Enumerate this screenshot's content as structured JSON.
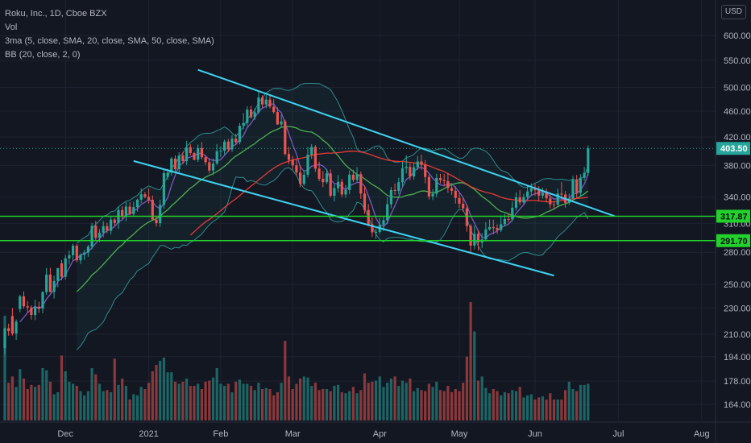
{
  "legend": {
    "symbol": "Roku, Inc., 1D, Cboe BZX",
    "vol": "Vol",
    "ma": "3ma (5, close, SMA, 20, close, SMA, 50, close, SMA)",
    "bb": "BB (20, close, 2, 0)"
  },
  "currency_label": "USD",
  "colors": {
    "background": "#131722",
    "up": "#26a69a",
    "down": "#ef5350",
    "ma5": "#7e57c2",
    "ma20": "#4caf50",
    "ma50": "#e53935",
    "bb": "#2e8b8b",
    "channel": "#3fd2f0",
    "level": "#22d12b",
    "last_price": "#26a69a"
  },
  "chart_data": {
    "type": "candlestick",
    "log_scale": true,
    "ylim": [
      155,
      680
    ],
    "y_ticks": [
      164,
      178,
      194,
      210,
      230,
      250,
      280,
      310,
      340,
      380,
      420,
      460,
      500,
      550,
      600
    ],
    "x_ticks": [
      {
        "label": "Dec",
        "date": "2020-12-01"
      },
      {
        "label": "2021",
        "date": "2021-01-04"
      },
      {
        "label": "Feb",
        "date": "2021-02-01"
      },
      {
        "label": "Mar",
        "date": "2021-03-01"
      },
      {
        "label": "Apr",
        "date": "2021-04-01"
      },
      {
        "label": "May",
        "date": "2021-05-03"
      },
      {
        "label": "Jun",
        "date": "2021-06-01"
      },
      {
        "label": "Jul",
        "date": "2021-07-01"
      },
      {
        "label": "Aug",
        "date": "2021-08-02"
      }
    ],
    "series": [
      {
        "name": "Roku, Inc.",
        "dates": [
          "2020-11-06",
          "2020-11-09",
          "2020-11-10",
          "2020-11-11",
          "2020-11-12",
          "2020-11-13",
          "2020-11-16",
          "2020-11-17",
          "2020-11-18",
          "2020-11-19",
          "2020-11-20",
          "2020-11-23",
          "2020-11-24",
          "2020-11-25",
          "2020-11-27",
          "2020-11-30",
          "2020-12-01",
          "2020-12-02",
          "2020-12-03",
          "2020-12-04",
          "2020-12-07",
          "2020-12-08",
          "2020-12-09",
          "2020-12-10",
          "2020-12-11",
          "2020-12-14",
          "2020-12-15",
          "2020-12-16",
          "2020-12-17",
          "2020-12-18",
          "2020-12-21",
          "2020-12-22",
          "2020-12-23",
          "2020-12-24",
          "2020-12-28",
          "2020-12-29",
          "2020-12-30",
          "2020-12-31",
          "2021-01-04",
          "2021-01-05",
          "2021-01-06",
          "2021-01-07",
          "2021-01-08",
          "2021-01-11",
          "2021-01-12",
          "2021-01-13",
          "2021-01-14",
          "2021-01-15",
          "2021-01-19",
          "2021-01-20",
          "2021-01-21",
          "2021-01-22",
          "2021-01-25",
          "2021-01-26",
          "2021-01-27",
          "2021-01-28",
          "2021-01-29",
          "2021-02-01",
          "2021-02-02",
          "2021-02-03",
          "2021-02-04",
          "2021-02-05",
          "2021-02-08",
          "2021-02-09",
          "2021-02-10",
          "2021-02-11",
          "2021-02-12",
          "2021-02-16",
          "2021-02-17",
          "2021-02-18",
          "2021-02-19",
          "2021-02-22",
          "2021-02-23",
          "2021-02-24",
          "2021-02-25",
          "2021-02-26",
          "2021-03-01",
          "2021-03-02",
          "2021-03-03",
          "2021-03-04",
          "2021-03-05",
          "2021-03-08",
          "2021-03-09",
          "2021-03-10",
          "2021-03-11",
          "2021-03-12",
          "2021-03-15",
          "2021-03-16",
          "2021-03-17",
          "2021-03-18",
          "2021-03-19",
          "2021-03-22",
          "2021-03-23",
          "2021-03-24",
          "2021-03-25",
          "2021-03-26",
          "2021-03-29",
          "2021-03-30",
          "2021-03-31",
          "2021-04-01",
          "2021-04-05",
          "2021-04-06",
          "2021-04-07",
          "2021-04-08",
          "2021-04-09",
          "2021-04-12",
          "2021-04-13",
          "2021-04-14",
          "2021-04-15",
          "2021-04-16",
          "2021-04-19",
          "2021-04-20",
          "2021-04-21",
          "2021-04-22",
          "2021-04-23",
          "2021-04-26",
          "2021-04-27",
          "2021-04-28",
          "2021-04-29",
          "2021-04-30",
          "2021-05-03",
          "2021-05-04",
          "2021-05-05",
          "2021-05-06",
          "2021-05-07",
          "2021-05-10",
          "2021-05-11",
          "2021-05-12",
          "2021-05-13",
          "2021-05-14",
          "2021-05-17",
          "2021-05-18",
          "2021-05-19",
          "2021-05-20",
          "2021-05-21",
          "2021-05-24",
          "2021-05-25",
          "2021-05-26",
          "2021-05-27",
          "2021-05-28",
          "2021-06-01",
          "2021-06-02",
          "2021-06-03",
          "2021-06-04",
          "2021-06-07",
          "2021-06-08",
          "2021-06-09",
          "2021-06-10",
          "2021-06-11",
          "2021-06-14",
          "2021-06-15",
          "2021-06-16",
          "2021-06-17",
          "2021-06-18",
          "2021-06-21"
        ],
        "open": [
          200.0,
          214.4,
          223.7,
          210.4,
          229.4,
          239.8,
          231.6,
          230.6,
          224.6,
          231.3,
          229.7,
          243.4,
          258.9,
          243.6,
          253.1,
          269.3,
          256.9,
          274.1,
          277.2,
          286.5,
          272.2,
          277.6,
          279.8,
          285.6,
          307.3,
          294.6,
          300.0,
          307.0,
          302.0,
          314.1,
          310.5,
          324.9,
          317.4,
          328.8,
          320.4,
          328.2,
          336.9,
          343.4,
          340.2,
          336.8,
          314.0,
          310.2,
          330.8,
          365.1,
          370.6,
          389.4,
          375.1,
          393.4,
          385.9,
          405.3,
          397.0,
          387.7,
          403.9,
          391.1,
          384.4,
          373.3,
          382.6,
          399.6,
          400.2,
          413.3,
          402.1,
          417.5,
          412.5,
          437.0,
          441.2,
          462.5,
          450.2,
          458.1,
          482.6,
          470.9,
          479.1,
          467.3,
          458.5,
          439.0,
          443.8,
          395.7,
          387.5,
          380.1,
          370.7,
          356.1,
          367.9,
          394.7,
          405.5,
          375.8,
          362.6,
          358.3,
          369.6,
          341.6,
          350.8,
          358.7,
          343.2,
          348.6,
          367.9,
          361.1,
          368.6,
          344.2,
          324.9,
          309.0,
          300.3,
          300.8,
          308.5,
          313.5,
          331.6,
          348.6,
          347.5,
          358.3,
          376.2,
          378.1,
          365.6,
          377.6,
          385.4,
          380.7,
          364.9,
          340.8,
          344.0,
          363.6,
          361.0,
          359.7,
          351.0,
          347.6,
          339.0,
          332.2,
          326.8,
          307.1,
          286.7,
          298.9,
          289.9,
          292.9,
          303.5,
          306.0,
          304.9,
          302.7,
          309.0,
          314.8,
          314.3,
          327.5,
          339.7,
          333.7,
          340.0,
          346.9,
          350.8,
          348.3,
          341.8,
          345.1,
          338.6,
          331.4,
          331.2,
          344.3,
          343.1,
          333.2,
          338.4,
          361.6,
          345.1,
          364.0,
          370.0
        ],
        "high": [
          213.0,
          217.9,
          230.1,
          221.1,
          241.1,
          244.0,
          235.9,
          232.3,
          237.0,
          235.4,
          244.4,
          265.1,
          265.1,
          257.8,
          265.2,
          272.5,
          277.4,
          281.9,
          288.7,
          288.3,
          278.9,
          282.3,
          287.5,
          310.4,
          312.7,
          303.5,
          312.4,
          310.5,
          317.0,
          315.8,
          329.1,
          329.2,
          334.3,
          333.9,
          334.3,
          338.2,
          350.7,
          346.0,
          350.5,
          341.9,
          318.4,
          337.0,
          375.3,
          375.6,
          391.5,
          393.9,
          398.1,
          398.8,
          414.4,
          409.7,
          398.4,
          409.0,
          412.5,
          393.9,
          389.5,
          389.1,
          409.7,
          406.7,
          416.1,
          417.1,
          422.9,
          424.7,
          441.2,
          457.2,
          468.0,
          468.7,
          464.8,
          492.5,
          486.4,
          486.4,
          486.6,
          479.7,
          466.2,
          454.4,
          446.6,
          405.8,
          392.9,
          388.5,
          380.2,
          373.4,
          405.3,
          409.7,
          408.1,
          385.2,
          372.6,
          375.2,
          374.7,
          355.6,
          367.5,
          362.5,
          354.8,
          373.5,
          374.5,
          377.7,
          371.9,
          353.0,
          331.8,
          316.4,
          304.3,
          316.1,
          317.2,
          340.0,
          352.4,
          356.6,
          363.9,
          384.8,
          393.8,
          383.0,
          383.2,
          392.9,
          394.7,
          387.3,
          368.4,
          349.5,
          369.0,
          369.0,
          368.8,
          370.1,
          355.1,
          353.1,
          344.6,
          339.3,
          331.0,
          309.1,
          307.5,
          302.8,
          299.6,
          311.3,
          314.2,
          313.9,
          308.8,
          318.8,
          320.3,
          321.2,
          334.7,
          345.7,
          348.3,
          344.1,
          354.1,
          356.8,
          356.2,
          353.2,
          351.4,
          350.3,
          343.4,
          335.3,
          350.2,
          358.6,
          347.2,
          344.0,
          366.2,
          367.5,
          368.5,
          378.0,
          407.6
        ],
        "low": [
          195.3,
          208.8,
          208.9,
          205.8,
          226.7,
          229.6,
          226.9,
          221.0,
          220.6,
          226.2,
          226.0,
          241.1,
          242.9,
          238.0,
          247.6,
          253.7,
          254.2,
          268.2,
          272.3,
          270.4,
          268.7,
          272.6,
          275.6,
          283.0,
          292.1,
          290.3,
          295.3,
          299.6,
          298.1,
          306.8,
          304.0,
          314.6,
          312.1,
          318.9,
          318.2,
          323.0,
          332.9,
          338.6,
          332.3,
          314.2,
          306.6,
          306.1,
          326.2,
          361.6,
          366.3,
          370.9,
          369.0,
          382.4,
          380.7,
          393.7,
          386.8,
          384.7,
          388.0,
          380.7,
          369.3,
          367.3,
          380.4,
          391.4,
          394.6,
          398.2,
          398.6,
          408.1,
          409.3,
          432.0,
          436.2,
          448.0,
          445.9,
          455.3,
          465.7,
          464.7,
          464.6,
          456.1,
          438.3,
          434.0,
          393.2,
          381.8,
          374.4,
          366.9,
          351.9,
          353.8,
          364.4,
          388.8,
          371.6,
          359.7,
          352.2,
          356.2,
          339.6,
          335.0,
          345.7,
          340.0,
          339.2,
          343.4,
          358.4,
          357.7,
          337.9,
          320.5,
          306.8,
          295.5,
          293.6,
          298.7,
          301.6,
          309.0,
          327.0,
          342.5,
          343.4,
          353.4,
          369.5,
          361.0,
          361.5,
          374.1,
          374.3,
          357.1,
          337.1,
          336.5,
          340.0,
          356.7,
          353.3,
          345.1,
          342.7,
          332.4,
          327.3,
          323.1,
          301.1,
          279.9,
          282.7,
          281.5,
          284.3,
          290.9,
          302.1,
          298.6,
          298.8,
          300.8,
          306.6,
          310.8,
          312.4,
          324.2,
          330.6,
          331.9,
          336.8,
          341.1,
          341.8,
          335.0,
          338.1,
          333.6,
          326.8,
          325.1,
          328.8,
          337.3,
          327.6,
          330.8,
          337.9,
          338.8,
          341.0,
          360.7,
          366.4
        ],
        "close": [
          214.4,
          212.2,
          210.4,
          219.4,
          239.8,
          231.6,
          230.6,
          224.6,
          231.3,
          229.7,
          243.4,
          258.9,
          243.6,
          253.1,
          264.8,
          256.9,
          274.1,
          277.2,
          286.5,
          272.2,
          277.6,
          279.8,
          285.6,
          307.3,
          294.6,
          300.0,
          307.0,
          302.0,
          314.1,
          310.5,
          324.9,
          317.4,
          328.8,
          320.4,
          328.2,
          336.9,
          343.4,
          340.2,
          336.8,
          314.0,
          310.2,
          330.8,
          370.0,
          370.6,
          389.4,
          375.1,
          393.4,
          385.9,
          405.3,
          397.0,
          387.7,
          403.9,
          391.1,
          384.4,
          373.3,
          382.6,
          399.6,
          400.2,
          413.3,
          402.1,
          417.5,
          412.5,
          437.0,
          441.2,
          462.5,
          450.2,
          458.1,
          482.6,
          470.9,
          479.1,
          467.3,
          458.5,
          439.0,
          443.8,
          395.7,
          387.5,
          380.1,
          370.7,
          356.1,
          367.9,
          394.7,
          405.5,
          375.8,
          362.6,
          358.3,
          369.6,
          341.6,
          350.8,
          358.7,
          343.2,
          348.6,
          367.9,
          361.1,
          368.6,
          344.2,
          324.9,
          309.0,
          300.3,
          300.8,
          308.5,
          313.5,
          331.6,
          348.6,
          347.5,
          358.3,
          376.2,
          378.1,
          365.6,
          377.6,
          385.4,
          380.7,
          364.9,
          340.8,
          344.0,
          363.6,
          361.0,
          359.7,
          351.0,
          347.6,
          339.0,
          332.2,
          326.8,
          307.1,
          286.7,
          298.9,
          289.9,
          292.9,
          303.5,
          306.0,
          304.9,
          302.7,
          309.0,
          314.8,
          314.3,
          327.5,
          339.7,
          333.7,
          340.0,
          346.9,
          350.8,
          348.3,
          341.8,
          345.1,
          338.6,
          331.4,
          331.2,
          344.3,
          343.1,
          333.2,
          338.4,
          361.6,
          345.1,
          364.0,
          370.0,
          403.5
        ],
        "volume": [
          1.0,
          0.36,
          0.42,
          0.32,
          0.49,
          0.4,
          0.3,
          0.34,
          0.32,
          0.34,
          0.5,
          0.48,
          0.37,
          0.25,
          0.27,
          0.62,
          0.47,
          0.37,
          0.35,
          0.33,
          0.28,
          0.24,
          0.28,
          0.5,
          0.44,
          0.35,
          0.28,
          0.29,
          0.27,
          0.59,
          0.34,
          0.4,
          0.33,
          0.2,
          0.25,
          0.24,
          0.32,
          0.3,
          0.36,
          0.47,
          0.53,
          0.57,
          0.6,
          0.46,
          0.46,
          0.37,
          0.35,
          0.37,
          0.4,
          0.33,
          0.33,
          0.35,
          0.3,
          0.37,
          0.38,
          0.41,
          0.5,
          0.35,
          0.33,
          0.35,
          0.27,
          0.37,
          0.39,
          0.35,
          0.35,
          0.33,
          0.29,
          0.36,
          0.3,
          0.31,
          0.3,
          0.24,
          0.27,
          0.36,
          0.76,
          0.42,
          0.3,
          0.35,
          0.4,
          0.42,
          0.41,
          0.33,
          0.36,
          0.29,
          0.3,
          0.3,
          0.28,
          0.33,
          0.34,
          0.27,
          0.26,
          0.28,
          0.32,
          0.26,
          0.29,
          0.45,
          0.36,
          0.37,
          0.38,
          0.42,
          0.32,
          0.36,
          0.4,
          0.42,
          0.33,
          0.38,
          0.36,
          0.4,
          0.28,
          0.31,
          0.29,
          0.28,
          0.35,
          0.32,
          0.37,
          0.29,
          0.28,
          0.33,
          0.27,
          0.3,
          0.28,
          0.36,
          0.61,
          1.13,
          0.85,
          0.38,
          0.42,
          0.31,
          0.26,
          0.3,
          0.28,
          0.24,
          0.27,
          0.26,
          0.29,
          0.28,
          0.32,
          0.22,
          0.24,
          0.25,
          0.2,
          0.22,
          0.23,
          0.2,
          0.26,
          0.2,
          0.2,
          0.2,
          0.29,
          0.37,
          0.3,
          0.28,
          0.34,
          0.34,
          0.35
        ],
        "mas": [
          {
            "name": "MA 5",
            "period": 5,
            "color": "#7e57c2"
          },
          {
            "name": "MA 20",
            "period": 20,
            "color": "#4caf50"
          },
          {
            "name": "MA 50",
            "period": 50,
            "color": "#e53935"
          }
        ],
        "bb": {
          "period": 20,
          "mult": 2
        }
      }
    ],
    "last_price": 403.5,
    "horizontal_levels": [
      317.87,
      291.7
    ],
    "trendlines": [
      {
        "from": {
          "date": "2021-01-22",
          "price": 532
        },
        "to": {
          "date": "2021-06-30",
          "price": 318
        }
      },
      {
        "from": {
          "date": "2020-12-28",
          "price": 386
        },
        "to": {
          "date": "2021-06-08",
          "price": 258
        }
      }
    ]
  }
}
